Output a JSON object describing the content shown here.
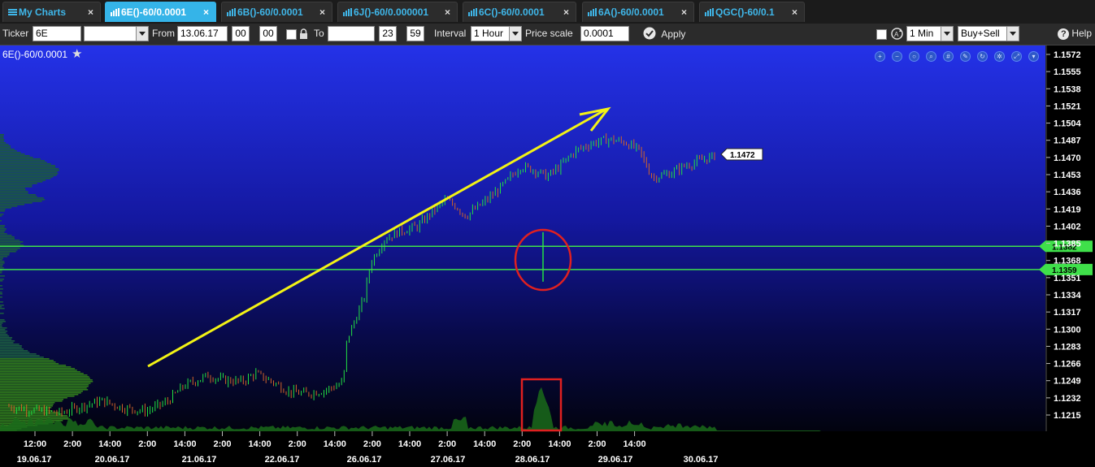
{
  "tabs": [
    {
      "label": "My Charts",
      "icon": "menu-icon",
      "active": false
    },
    {
      "label": "6E()-60/0.0001",
      "icon": "bar-chart-icon",
      "active": true
    },
    {
      "label": "6B()-60/0.0001",
      "icon": "bar-chart-icon",
      "active": false
    },
    {
      "label": "6J()-60/0.000001",
      "icon": "bar-chart-icon",
      "active": false
    },
    {
      "label": "6C()-60/0.0001",
      "icon": "bar-chart-icon",
      "active": false
    },
    {
      "label": "6A()-60/0.0001",
      "icon": "bar-chart-icon",
      "active": false
    },
    {
      "label": "QGC()-60/0.1",
      "icon": "bar-chart-icon",
      "active": false
    }
  ],
  "tab_close": "×",
  "toolbar": {
    "ticker_label": "Ticker",
    "ticker_value": "6E",
    "ticker_dropdown_value": "",
    "from_label": "From",
    "from_date": "13.06.17",
    "from_hour": "00",
    "from_min": "00",
    "to_label": "To",
    "to_date": "",
    "to_hour": "23",
    "to_min": "59",
    "interval_label": "Interval",
    "interval_value": "1 Hour",
    "price_scale_label": "Price scale",
    "price_scale_value": "0.0001",
    "apply_label": "Apply",
    "auto_interval_value": "1 Min",
    "mode_value": "Buy+Sell",
    "help_label": "Help"
  },
  "chart": {
    "title": "6E()-60/0.0001",
    "last_price": "1.1472",
    "level_upper": "1.1382",
    "level_lower": "1.1359",
    "colors": {
      "background_top": "#2433e6",
      "background_bottom": "#03041a",
      "up_bar": "#22e043",
      "down_bar": "#d0632a",
      "level_line": "#3fe04a",
      "arrow": "#f3f315",
      "circle": "#e02020",
      "volume": "#1a6b1a"
    }
  },
  "chart_data": {
    "type": "bar",
    "title": "6E()-60/0.0001",
    "y_axis_ticks": [
      "1.1572",
      "1.1555",
      "1.1538",
      "1.1521",
      "1.1504",
      "1.1487",
      "1.1470",
      "1.1453",
      "1.1436",
      "1.1419",
      "1.1402",
      "1.1385",
      "1.1368",
      "1.1351",
      "1.1334",
      "1.1317",
      "1.1300",
      "1.1283",
      "1.1266",
      "1.1249",
      "1.1232",
      "1.1215"
    ],
    "ylim": [
      1.1205,
      1.1582
    ],
    "x_axis_time_labels": [
      "12:00",
      "2:00",
      "14:00",
      "2:00",
      "14:00",
      "2:00",
      "14:00",
      "2:00",
      "14:00",
      "2:00",
      "14:00",
      "2:00",
      "14:00",
      "2:00",
      "14:00",
      "2:00",
      "14:00"
    ],
    "x_axis_date_labels": [
      "19.06.17",
      "20.06.17",
      "21.06.17",
      "22.06.17",
      "26.06.17",
      "27.06.17",
      "28.06.17",
      "29.06.17",
      "30.06.17"
    ],
    "price_path": [
      [
        0.0,
        1.1224
      ],
      [
        0.08,
        1.122
      ],
      [
        0.17,
        1.1217
      ],
      [
        0.23,
        1.1224
      ],
      [
        0.29,
        1.1229
      ],
      [
        0.35,
        1.1222
      ],
      [
        0.42,
        1.1219
      ],
      [
        0.48,
        1.1228
      ],
      [
        0.53,
        1.1244
      ],
      [
        0.6,
        1.1254
      ],
      [
        0.64,
        1.125
      ],
      [
        0.7,
        1.1248
      ],
      [
        0.74,
        1.1256
      ],
      [
        0.79,
        1.1248
      ],
      [
        0.84,
        1.1238
      ],
      [
        0.89,
        1.1236
      ],
      [
        0.94,
        1.1239
      ],
      [
        0.98,
        1.1244
      ],
      [
        1.0,
        1.1248
      ],
      [
        1.0,
        1.1251
      ],
      [
        1.01,
        1.129
      ],
      [
        1.06,
        1.133
      ],
      [
        1.08,
        1.1366
      ],
      [
        1.12,
        1.1389
      ],
      [
        1.16,
        1.1396
      ],
      [
        1.22,
        1.1402
      ],
      [
        1.26,
        1.1416
      ],
      [
        1.3,
        1.1428
      ],
      [
        1.33,
        1.1422
      ],
      [
        1.36,
        1.1412
      ],
      [
        1.4,
        1.1422
      ],
      [
        1.44,
        1.1433
      ],
      [
        1.48,
        1.1446
      ],
      [
        1.52,
        1.1461
      ],
      [
        1.56,
        1.1458
      ],
      [
        1.6,
        1.1451
      ],
      [
        1.64,
        1.1462
      ],
      [
        1.68,
        1.1476
      ],
      [
        1.73,
        1.1484
      ],
      [
        1.78,
        1.1488
      ],
      [
        1.83,
        1.1485
      ],
      [
        1.87,
        1.1477
      ],
      [
        1.91,
        1.145
      ],
      [
        1.96,
        1.1454
      ],
      [
        2.0,
        1.1461
      ],
      [
        2.06,
        1.1468
      ],
      [
        2.1,
        1.1472
      ]
    ],
    "last_price": 1.1472,
    "horizontal_levels": [
      1.1382,
      1.1359
    ],
    "annotations": [
      "upward trend arrow",
      "red circle around long candle wick on 28.06.17",
      "red rectangle around volume spike on 28.06.17"
    ],
    "grid": false,
    "legend": "none"
  }
}
